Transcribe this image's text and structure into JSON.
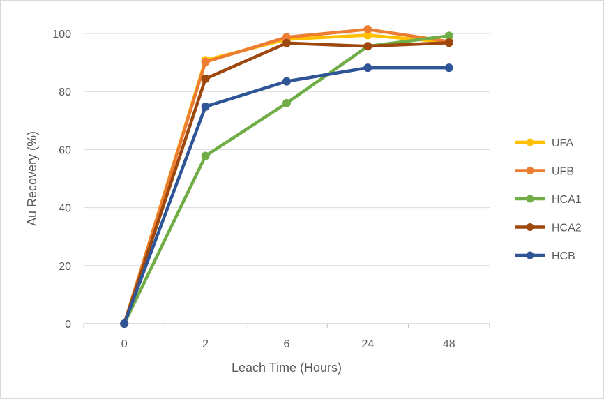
{
  "chart_data": {
    "type": "line",
    "title": "",
    "xlabel": "Leach Time (Hours)",
    "ylabel": "Au Recovery (%)",
    "categories": [
      "0",
      "2",
      "6",
      "24",
      "48"
    ],
    "ylim": [
      0,
      100
    ],
    "yticks": [
      "0",
      "20",
      "40",
      "60",
      "80",
      "100"
    ],
    "grid": true,
    "legend_position": "right",
    "series": [
      {
        "name": "UFA",
        "color": "#FFC000",
        "values": [
          0,
          90.8,
          98.0,
          99.4,
          97.0
        ]
      },
      {
        "name": "UFB",
        "color": "#ED7D31",
        "values": [
          0,
          90.2,
          98.7,
          101.4,
          97.2
        ]
      },
      {
        "name": "HCA1",
        "color": "#70AD47",
        "values": [
          0,
          57.8,
          76.0,
          95.6,
          99.2
        ]
      },
      {
        "name": "HCA2",
        "color": "#9E480E",
        "values": [
          0,
          84.4,
          96.7,
          95.6,
          96.8
        ]
      },
      {
        "name": "HCB",
        "color": "#2F5597",
        "values": [
          0,
          74.8,
          83.5,
          88.2,
          88.2
        ]
      }
    ]
  }
}
